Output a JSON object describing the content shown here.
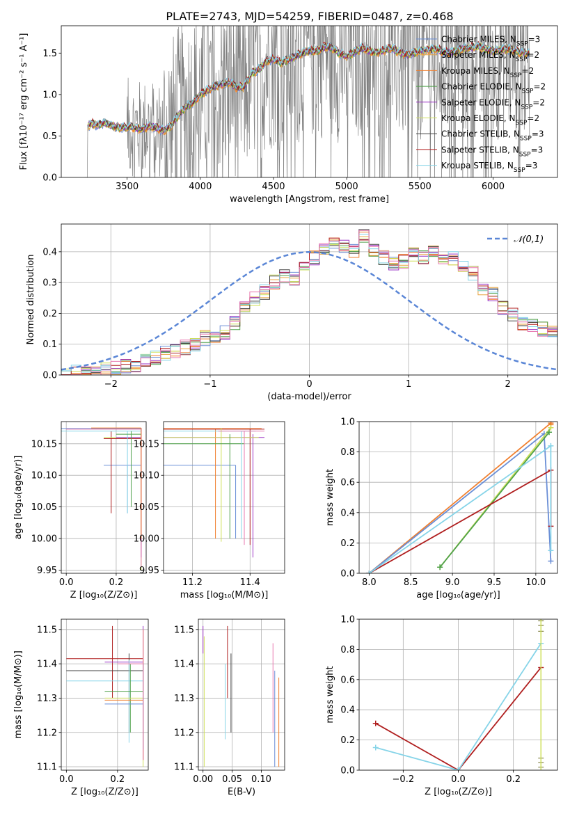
{
  "figure_title": "PLATE=2743, MJD=54259, FIBERID=0487, z=0.468",
  "colors": {
    "obs": "#808080",
    "Chabrier MILES": "#6a8ed6",
    "Salpeter MILES": "#e8a33c",
    "Kroupa MILES": "#f07f2e",
    "Chabrier ELODIE": "#4fa14a",
    "Salpeter ELODIE": "#9a31c4",
    "Kroupa ELODIE": "#cfe05a",
    "Chabrier STELIB": "#404040",
    "Salpeter STELIB": "#b01f1f",
    "Kroupa STELIB": "#86d4e8",
    "pink": "#e87ab0",
    "normal": "#5a86d6"
  },
  "chart_data": [
    {
      "id": "spectrum",
      "type": "line",
      "title": "PLATE=2743, MJD=54259, FIBERID=0487, z=0.468",
      "xlabel": "wavelength [Angstrom, rest frame]",
      "ylabel": "Flux [fλ10⁻¹⁷ erg cm⁻² s⁻¹ A⁻¹]",
      "xlim": [
        3050,
        6440
      ],
      "ylim": [
        0,
        1.83
      ],
      "xticks": [
        3500,
        4000,
        4500,
        5000,
        5500,
        6000
      ],
      "yticks": [
        0.0,
        0.5,
        1.0,
        1.5
      ],
      "grid": false,
      "legend_position": "top-right",
      "legend": [
        "Chabrier MILES, N_SSP=3",
        "Salpeter MILES, N_SSP=2",
        "Kroupa MILES, N_SSP=2",
        "Chabrier ELODIE, N_SSP=2",
        "Salpeter ELODIE, N_SSP=2",
        "Kroupa ELODIE, N_SSP=2",
        "Chabrier STELIB, N_SSP=3",
        "Salpeter STELIB, N_SSP=3",
        "Kroupa STELIB, N_SSP=3"
      ],
      "model_continuum": {
        "x": [
          3210,
          3230,
          3260,
          3300,
          3350,
          3400,
          3450,
          3500,
          3550,
          3600,
          3650,
          3700,
          3750,
          3800,
          3850,
          3900,
          3950,
          4000,
          4050,
          4100,
          4150,
          4200,
          4250,
          4300,
          4350,
          4400,
          4450,
          4500,
          4550,
          4600,
          4650,
          4700,
          4750,
          4800,
          4850,
          4900,
          4950,
          5000,
          5100,
          5200,
          5300,
          5400,
          5500,
          5600,
          5700,
          5800,
          5900,
          6000,
          6100,
          6200
        ],
        "y": [
          0.58,
          0.62,
          0.65,
          0.63,
          0.66,
          0.62,
          0.6,
          0.61,
          0.6,
          0.58,
          0.62,
          0.6,
          0.56,
          0.62,
          0.75,
          0.85,
          0.9,
          1.0,
          1.05,
          1.1,
          1.12,
          1.15,
          1.08,
          1.1,
          1.25,
          1.3,
          1.4,
          1.43,
          1.38,
          1.42,
          1.46,
          1.5,
          1.53,
          1.52,
          1.58,
          1.56,
          1.5,
          1.46,
          1.56,
          1.5,
          1.56,
          1.48,
          1.52,
          1.55,
          1.5,
          1.55,
          1.58,
          1.52,
          1.55,
          1.5
        ]
      },
      "observed_noise_start": 3500
    },
    {
      "id": "residuals",
      "type": "line",
      "xlabel": "(data-model)/error",
      "ylabel": "Normed distribution",
      "xlim": [
        -2.5,
        2.5
      ],
      "ylim": [
        0,
        0.49
      ],
      "xticks": [
        -2,
        -1,
        0,
        1,
        2
      ],
      "yticks": [
        0.0,
        0.1,
        0.2,
        0.3,
        0.4
      ],
      "grid": true,
      "legend_position": "top-right",
      "legend": [
        "𝒩(0,1)"
      ],
      "bin_width": 0.1,
      "bin_start": -2.5,
      "histogram_mean": [
        0.005,
        0.008,
        0.01,
        0.013,
        0.016,
        0.02,
        0.028,
        0.035,
        0.045,
        0.055,
        0.07,
        0.08,
        0.09,
        0.1,
        0.12,
        0.13,
        0.14,
        0.17,
        0.22,
        0.25,
        0.27,
        0.3,
        0.32,
        0.31,
        0.35,
        0.38,
        0.41,
        0.43,
        0.42,
        0.4,
        0.45,
        0.41,
        0.38,
        0.36,
        0.37,
        0.39,
        0.38,
        0.4,
        0.37,
        0.38,
        0.36,
        0.33,
        0.28,
        0.26,
        0.22,
        0.2,
        0.17,
        0.16,
        0.15,
        0.14,
        0.12,
        0.1,
        0.09,
        0.08,
        0.1,
        0.09,
        0.07,
        0.06,
        0.05,
        0.04
      ]
    },
    {
      "id": "z-age",
      "type": "scatter",
      "xlabel": "Z [log₁₀(Z/Z⊙)]",
      "ylabel": "age  [log₁₀(age/yr)]",
      "xlim": [
        -0.02,
        0.32
      ],
      "ylim": [
        9.945,
        10.185
      ],
      "xticks": [
        0.0,
        0.2
      ],
      "yticks": [
        9.95,
        10.0,
        10.05,
        10.1,
        10.15
      ],
      "grid": true
    },
    {
      "id": "mass-age",
      "type": "scatter",
      "xlabel": "mass [log₁₀(M/M⊙)]",
      "ylabel": "",
      "xlim": [
        11.1,
        11.52
      ],
      "ylim": [
        9.945,
        10.185
      ],
      "xticks": [
        11.2,
        11.4
      ],
      "yticks": [
        9.95,
        10.0,
        10.05,
        10.1,
        10.15
      ],
      "grid": true
    },
    {
      "id": "age-weight",
      "type": "line",
      "xlabel": "age  [log₁₀(age/yr)]",
      "ylabel": "mass weight",
      "xlim": [
        7.88,
        10.26
      ],
      "ylim": [
        0.0,
        1.0
      ],
      "xticks": [
        8.0,
        8.5,
        9.0,
        9.5,
        10.0
      ],
      "yticks": [
        0.0,
        0.2,
        0.4,
        0.6,
        0.8,
        1.0
      ],
      "grid": true,
      "series": [
        {
          "color_key": "Kroupa MILES",
          "x": [
            8.0,
            10.18,
            10.18
          ],
          "y": [
            0.0,
            0.99,
            0.98
          ]
        },
        {
          "color_key": "Chabrier MILES",
          "x": [
            8.0,
            10.1,
            10.18
          ],
          "y": [
            0.0,
            0.92,
            0.08
          ]
        },
        {
          "color_key": "Kroupa ELODIE",
          "x": [
            8.85,
            10.18
          ],
          "y": [
            0.04,
            0.96
          ]
        },
        {
          "color_key": "Chabrier ELODIE",
          "x": [
            8.85,
            10.16
          ],
          "y": [
            0.04,
            0.93
          ]
        },
        {
          "color_key": "Salpeter STELIB",
          "x": [
            8.0,
            10.18,
            10.18
          ],
          "y": [
            0.0,
            0.68,
            0.31
          ]
        },
        {
          "color_key": "Kroupa STELIB",
          "x": [
            8.0,
            10.18,
            10.18
          ],
          "y": [
            0.0,
            0.84,
            0.15
          ]
        }
      ]
    },
    {
      "id": "z-mass",
      "type": "scatter",
      "xlabel": "Z [log₁₀(Z/Z⊙)]",
      "ylabel": "mass [log₁₀(M/M⊙)]",
      "xlim": [
        -0.02,
        0.32
      ],
      "ylim": [
        11.09,
        11.53
      ],
      "xticks": [
        0.0,
        0.2
      ],
      "yticks": [
        11.1,
        11.2,
        11.3,
        11.4,
        11.5
      ],
      "grid": true
    },
    {
      "id": "ebv-mass",
      "type": "scatter",
      "xlabel": "E(B-V)",
      "ylabel": "",
      "xlim": [
        -0.008,
        0.14
      ],
      "ylim": [
        11.09,
        11.53
      ],
      "xticks": [
        0.0,
        0.05,
        0.1
      ],
      "yticks": [
        11.1,
        11.2,
        11.3,
        11.4,
        11.5
      ],
      "grid": true
    },
    {
      "id": "z-weight",
      "type": "line",
      "xlabel": "Z [log₁₀(Z/Z⊙)]",
      "ylabel": "mass weight",
      "xlim": [
        -0.36,
        0.36
      ],
      "ylim": [
        0.0,
        1.0
      ],
      "xticks": [
        -0.2,
        0.0,
        0.2
      ],
      "yticks": [
        0.0,
        0.2,
        0.4,
        0.6,
        0.8,
        1.0
      ],
      "grid": true,
      "series": [
        {
          "color_key": "Salpeter STELIB",
          "x": [
            -0.3,
            0.0,
            0.3
          ],
          "y": [
            0.31,
            0.0,
            0.68
          ]
        },
        {
          "color_key": "Kroupa STELIB",
          "x": [
            -0.3,
            0.0,
            0.3
          ],
          "y": [
            0.15,
            0.0,
            0.84
          ]
        }
      ]
    }
  ]
}
